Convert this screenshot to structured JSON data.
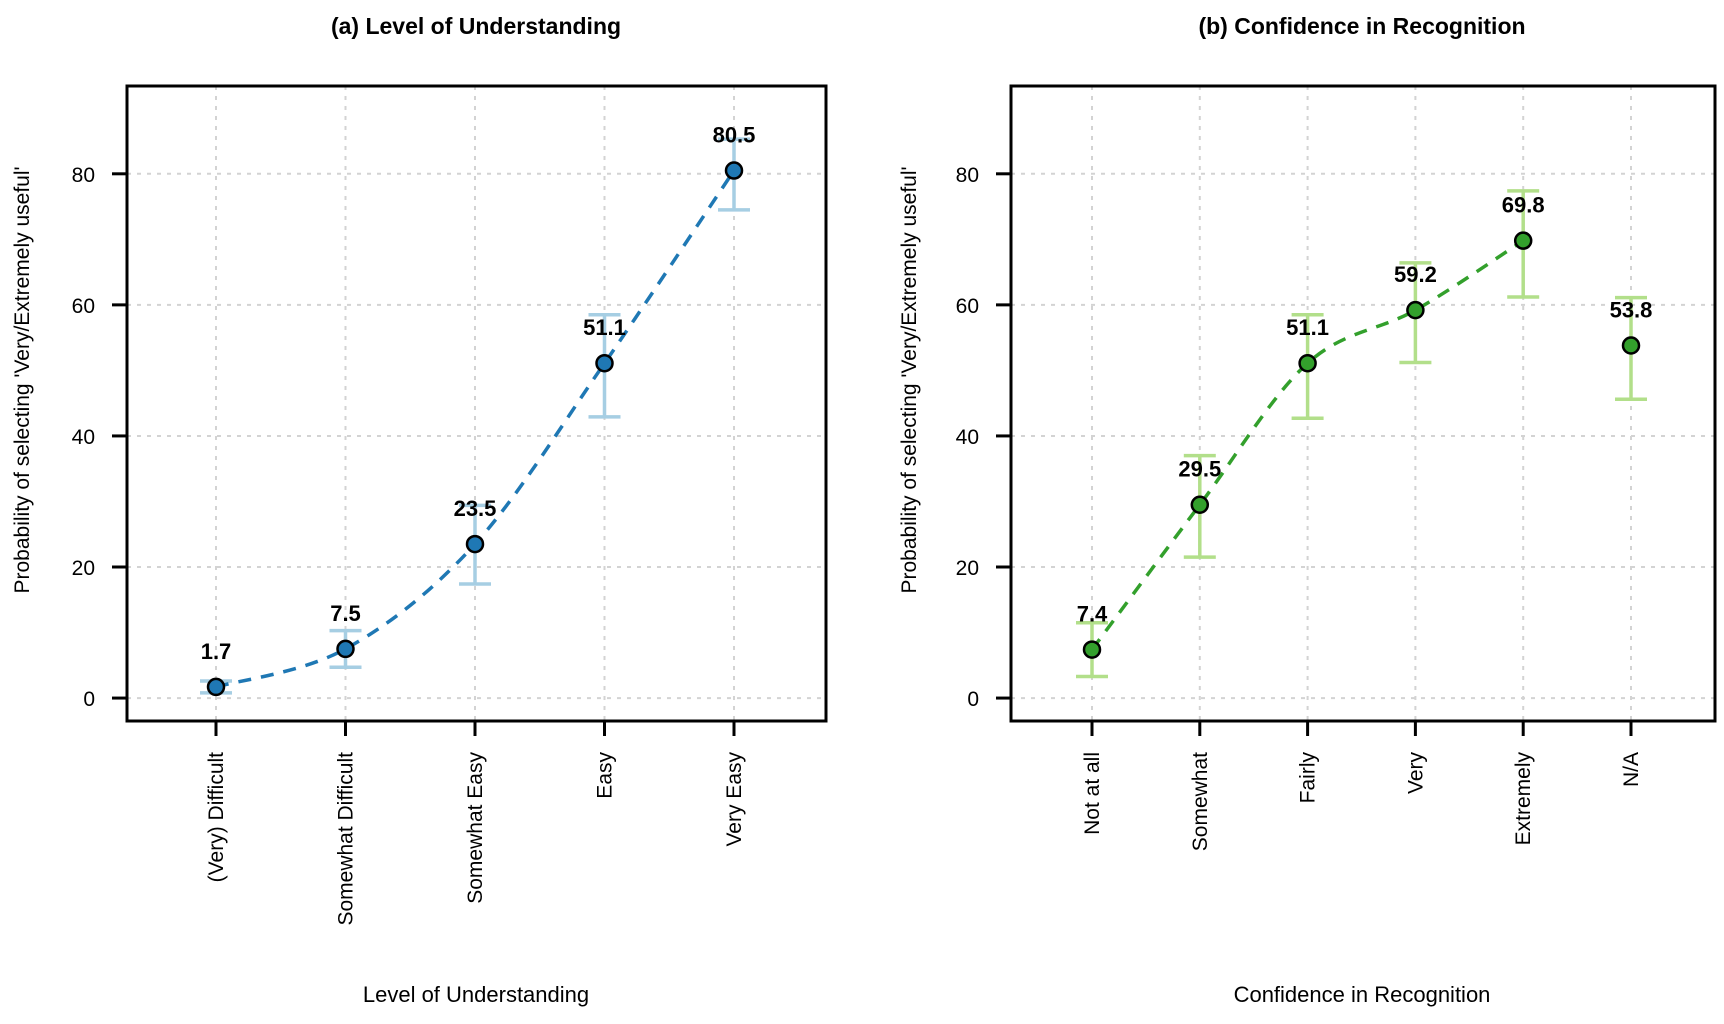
{
  "chart_data": [
    {
      "type": "line",
      "panel": "a",
      "title": "(a) Level of Understanding",
      "xlabel": "Level of Understanding",
      "ylabel": "Probability of selecting 'Very/Extremely useful'",
      "categories": [
        "(Very) Difficult",
        "Somewhat Difficult",
        "Somewhat Easy",
        "Easy",
        "Very Easy"
      ],
      "values": [
        1.7,
        7.5,
        23.5,
        51.1,
        80.5
      ],
      "value_labels": [
        "1.7",
        "7.5",
        "23.5",
        "51.1",
        "80.5"
      ],
      "ci_lower": [
        0.8,
        4.7,
        17.4,
        42.9,
        74.5
      ],
      "ci_upper": [
        2.6,
        10.3,
        29.4,
        58.5,
        85.3
      ],
      "line_style": "dashed",
      "ylim": [
        -3.5,
        93.4
      ],
      "yticks": [
        0,
        20,
        40,
        60,
        80
      ],
      "grid": true,
      "colors": {
        "point": "#1f78b4",
        "line": "#1f78b4",
        "errorbar": "#a6cee3"
      }
    },
    {
      "type": "line",
      "panel": "b",
      "title": "(b) Confidence in Recognition",
      "xlabel": "Confidence in Recognition",
      "ylabel": "Probability of selecting 'Very/Extremely useful'",
      "categories": [
        "Not at all",
        "Somewhat",
        "Fairly",
        "Very",
        "Extremely",
        "N/A"
      ],
      "values": [
        7.4,
        29.5,
        51.1,
        59.2,
        69.8,
        53.8
      ],
      "value_labels": [
        "7.4",
        "29.5",
        "51.1",
        "59.2",
        "69.8",
        "53.8"
      ],
      "ci_lower": [
        3.3,
        21.5,
        42.7,
        51.2,
        61.2,
        45.6
      ],
      "ci_upper": [
        11.5,
        37.0,
        58.5,
        66.4,
        77.4,
        61.1
      ],
      "line_connects_first_n": 5,
      "line_style": "dashed",
      "ylim": [
        -3.5,
        93.4
      ],
      "yticks": [
        0,
        20,
        40,
        60,
        80
      ],
      "grid": true,
      "colors": {
        "point": "#33a02c",
        "line": "#33a02c",
        "errorbar": "#b2df8a"
      }
    }
  ]
}
